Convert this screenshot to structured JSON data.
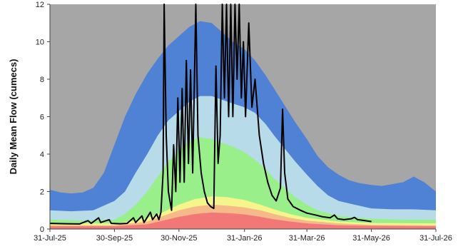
{
  "chart_data": {
    "type": "area",
    "title": "",
    "xlabel": "",
    "ylabel": "Daily Mean Flow (cumecs)",
    "ylim": [
      0,
      12
    ],
    "yticks": [
      0,
      2,
      4,
      6,
      8,
      10,
      12
    ],
    "xlim": [
      "2025-07-31",
      "2026-07-31"
    ],
    "xticks": [
      "2025-07-31",
      "2025-09-30",
      "2025-11-30",
      "2026-01-31",
      "2026-03-31",
      "2026-05-31",
      "2026-07-31"
    ],
    "xtick_labels": [
      "31-Jul-25",
      "30-Sep-25",
      "30-Nov-25",
      "31-Jan-26",
      "31-Mar-26",
      "31-May-26",
      "31-Jul-26"
    ],
    "grid": false,
    "legend": "none",
    "background_color": "#a6a6a6",
    "series": [
      {
        "color": "#4f81d4",
        "points": [
          [
            "2025-07-31",
            2.1
          ],
          [
            "2025-08-10",
            1.95
          ],
          [
            "2025-08-20",
            1.9
          ],
          [
            "2025-08-31",
            1.95
          ],
          [
            "2025-09-10",
            2.2
          ],
          [
            "2025-09-20",
            3.0
          ],
          [
            "2025-09-30",
            4.5
          ],
          [
            "2025-10-10",
            6.0
          ],
          [
            "2025-10-20",
            7.2
          ],
          [
            "2025-10-31",
            8.3
          ],
          [
            "2025-11-10",
            9.1
          ],
          [
            "2025-11-20",
            9.8
          ],
          [
            "2025-11-30",
            10.3
          ],
          [
            "2025-12-10",
            10.8
          ],
          [
            "2025-12-20",
            11.1
          ],
          [
            "2025-12-31",
            11.0
          ],
          [
            "2026-01-10",
            10.5
          ],
          [
            "2026-01-20",
            10.0
          ],
          [
            "2026-01-31",
            9.6
          ],
          [
            "2026-02-10",
            9.0
          ],
          [
            "2026-02-20",
            8.2
          ],
          [
            "2026-02-28",
            7.5
          ],
          [
            "2026-03-10",
            6.6
          ],
          [
            "2026-03-20",
            5.7
          ],
          [
            "2026-03-31",
            4.8
          ],
          [
            "2026-04-10",
            3.9
          ],
          [
            "2026-04-20",
            3.3
          ],
          [
            "2026-04-30",
            2.9
          ],
          [
            "2026-05-10",
            2.6
          ],
          [
            "2026-05-20",
            2.45
          ],
          [
            "2026-05-31",
            2.35
          ],
          [
            "2026-06-10",
            2.3
          ],
          [
            "2026-06-20",
            2.4
          ],
          [
            "2026-06-30",
            2.5
          ],
          [
            "2026-07-10",
            2.8
          ],
          [
            "2026-07-20",
            2.5
          ],
          [
            "2026-07-31",
            2.0
          ]
        ]
      },
      {
        "color": "#b7dbe8",
        "points": [
          [
            "2025-07-31",
            1.0
          ],
          [
            "2025-08-20",
            0.95
          ],
          [
            "2025-09-10",
            1.0
          ],
          [
            "2025-09-30",
            1.5
          ],
          [
            "2025-10-10",
            2.0
          ],
          [
            "2025-10-20",
            3.0
          ],
          [
            "2025-10-31",
            4.0
          ],
          [
            "2025-11-10",
            5.0
          ],
          [
            "2025-11-20",
            5.8
          ],
          [
            "2025-11-30",
            6.3
          ],
          [
            "2025-12-10",
            6.8
          ],
          [
            "2025-12-20",
            7.1
          ],
          [
            "2025-12-31",
            7.1
          ],
          [
            "2026-01-10",
            6.9
          ],
          [
            "2026-01-20",
            6.7
          ],
          [
            "2026-01-31",
            6.5
          ],
          [
            "2026-02-10",
            6.2
          ],
          [
            "2026-02-20",
            5.6
          ],
          [
            "2026-02-28",
            5.0
          ],
          [
            "2026-03-10",
            4.3
          ],
          [
            "2026-03-20",
            3.6
          ],
          [
            "2026-03-31",
            2.9
          ],
          [
            "2026-04-10",
            2.3
          ],
          [
            "2026-04-20",
            1.8
          ],
          [
            "2026-04-30",
            1.5
          ],
          [
            "2026-05-15",
            1.3
          ],
          [
            "2026-05-31",
            1.1
          ],
          [
            "2026-06-20",
            1.05
          ],
          [
            "2026-07-10",
            1.05
          ],
          [
            "2026-07-31",
            1.0
          ]
        ]
      },
      {
        "color": "#99f08a",
        "points": [
          [
            "2025-07-31",
            0.5
          ],
          [
            "2025-08-31",
            0.45
          ],
          [
            "2025-09-30",
            0.5
          ],
          [
            "2025-10-10",
            0.8
          ],
          [
            "2025-10-20",
            1.3
          ],
          [
            "2025-10-31",
            2.0
          ],
          [
            "2025-11-10",
            2.8
          ],
          [
            "2025-11-20",
            3.6
          ],
          [
            "2025-11-30",
            4.2
          ],
          [
            "2025-12-10",
            4.7
          ],
          [
            "2025-12-20",
            4.9
          ],
          [
            "2025-12-31",
            4.8
          ],
          [
            "2026-01-10",
            4.6
          ],
          [
            "2026-01-20",
            4.4
          ],
          [
            "2026-01-31",
            4.1
          ],
          [
            "2026-02-10",
            3.7
          ],
          [
            "2026-02-20",
            3.2
          ],
          [
            "2026-02-28",
            2.7
          ],
          [
            "2026-03-10",
            2.2
          ],
          [
            "2026-03-20",
            1.7
          ],
          [
            "2026-03-31",
            1.3
          ],
          [
            "2026-04-10",
            1.0
          ],
          [
            "2026-04-30",
            0.7
          ],
          [
            "2026-05-31",
            0.55
          ],
          [
            "2026-06-30",
            0.5
          ],
          [
            "2026-07-31",
            0.5
          ]
        ]
      },
      {
        "color": "#f5f58c",
        "points": [
          [
            "2025-07-31",
            0.3
          ],
          [
            "2025-09-30",
            0.3
          ],
          [
            "2025-10-20",
            0.45
          ],
          [
            "2025-10-31",
            0.6
          ],
          [
            "2025-11-15",
            0.9
          ],
          [
            "2025-11-30",
            1.3
          ],
          [
            "2025-12-15",
            1.6
          ],
          [
            "2025-12-31",
            1.75
          ],
          [
            "2026-01-15",
            1.7
          ],
          [
            "2026-01-31",
            1.55
          ],
          [
            "2026-02-15",
            1.3
          ],
          [
            "2026-02-28",
            1.05
          ],
          [
            "2026-03-15",
            0.8
          ],
          [
            "2026-03-31",
            0.6
          ],
          [
            "2026-04-30",
            0.4
          ],
          [
            "2026-05-31",
            0.32
          ],
          [
            "2026-07-31",
            0.3
          ]
        ]
      },
      {
        "color": "#f5b98a",
        "points": [
          [
            "2025-07-31",
            0.2
          ],
          [
            "2025-09-30",
            0.2
          ],
          [
            "2025-10-31",
            0.4
          ],
          [
            "2025-11-15",
            0.7
          ],
          [
            "2025-11-30",
            1.0
          ],
          [
            "2025-12-15",
            1.2
          ],
          [
            "2025-12-31",
            1.3
          ],
          [
            "2026-01-15",
            1.25
          ],
          [
            "2026-01-31",
            1.15
          ],
          [
            "2026-02-15",
            1.0
          ],
          [
            "2026-02-28",
            0.8
          ],
          [
            "2026-03-15",
            0.6
          ],
          [
            "2026-03-31",
            0.45
          ],
          [
            "2026-04-30",
            0.3
          ],
          [
            "2026-05-31",
            0.22
          ],
          [
            "2026-07-31",
            0.2
          ]
        ]
      },
      {
        "color": "#f27878",
        "points": [
          [
            "2025-07-31",
            0.15
          ],
          [
            "2025-09-30",
            0.15
          ],
          [
            "2025-10-31",
            0.25
          ],
          [
            "2025-11-15",
            0.45
          ],
          [
            "2025-11-30",
            0.65
          ],
          [
            "2025-12-15",
            0.8
          ],
          [
            "2025-12-31",
            0.88
          ],
          [
            "2026-01-15",
            0.85
          ],
          [
            "2026-01-31",
            0.78
          ],
          [
            "2026-02-15",
            0.65
          ],
          [
            "2026-02-28",
            0.52
          ],
          [
            "2026-03-15",
            0.4
          ],
          [
            "2026-03-31",
            0.3
          ],
          [
            "2026-04-30",
            0.2
          ],
          [
            "2026-05-31",
            0.17
          ],
          [
            "2026-07-31",
            0.15
          ]
        ]
      },
      {
        "color": "#000000",
        "type": "line",
        "points": [
          [
            "2025-07-31",
            0.3
          ],
          [
            "2025-08-15",
            0.28
          ],
          [
            "2025-08-28",
            0.27
          ],
          [
            "2025-09-05",
            0.45
          ],
          [
            "2025-09-08",
            0.3
          ],
          [
            "2025-09-15",
            0.6
          ],
          [
            "2025-09-17",
            0.35
          ],
          [
            "2025-09-25",
            0.5
          ],
          [
            "2025-09-27",
            0.3
          ],
          [
            "2025-10-05",
            0.28
          ],
          [
            "2025-10-12",
            0.3
          ],
          [
            "2025-10-18",
            0.6
          ],
          [
            "2025-10-20",
            0.35
          ],
          [
            "2025-10-26",
            0.7
          ],
          [
            "2025-10-28",
            0.35
          ],
          [
            "2025-11-03",
            0.9
          ],
          [
            "2025-11-05",
            0.5
          ],
          [
            "2025-11-09",
            0.8
          ],
          [
            "2025-11-11",
            0.5
          ],
          [
            "2025-11-13",
            0.9
          ],
          [
            "2025-11-15",
            3.0
          ],
          [
            "2025-11-16",
            12.0
          ],
          [
            "2025-11-18",
            5.0
          ],
          [
            "2025-11-20",
            2.0
          ],
          [
            "2025-11-23",
            1.0
          ],
          [
            "2025-11-25",
            4.5
          ],
          [
            "2025-11-27",
            2.0
          ],
          [
            "2025-11-29",
            7.0
          ],
          [
            "2025-12-01",
            2.5
          ],
          [
            "2025-12-03",
            7.5
          ],
          [
            "2025-12-05",
            2.5
          ],
          [
            "2025-12-07",
            9.0
          ],
          [
            "2025-12-09",
            3.5
          ],
          [
            "2025-12-11",
            8.5
          ],
          [
            "2025-12-13",
            3.0
          ],
          [
            "2025-12-16",
            12.0
          ],
          [
            "2025-12-18",
            5.0
          ],
          [
            "2025-12-21",
            3.0
          ],
          [
            "2025-12-24",
            2.0
          ],
          [
            "2025-12-27",
            1.4
          ],
          [
            "2025-12-30",
            1.2
          ],
          [
            "2026-01-02",
            1.1
          ],
          [
            "2026-01-04",
            8.7
          ],
          [
            "2026-01-06",
            3.5
          ],
          [
            "2026-01-08",
            5.0
          ],
          [
            "2026-01-10",
            12.0
          ],
          [
            "2026-01-12",
            7.0
          ],
          [
            "2026-01-14",
            12.0
          ],
          [
            "2026-01-16",
            6.0
          ],
          [
            "2026-01-18",
            12.0
          ],
          [
            "2026-01-20",
            6.0
          ],
          [
            "2026-01-22",
            12.0
          ],
          [
            "2026-01-24",
            8.0
          ],
          [
            "2026-01-26",
            12.0
          ],
          [
            "2026-01-28",
            7.0
          ],
          [
            "2026-01-30",
            10.0
          ],
          [
            "2026-02-01",
            6.0
          ],
          [
            "2026-02-04",
            11.0
          ],
          [
            "2026-02-07",
            6.5
          ],
          [
            "2026-02-10",
            8.0
          ],
          [
            "2026-02-14",
            5.0
          ],
          [
            "2026-02-18",
            3.5
          ],
          [
            "2026-02-22",
            2.5
          ],
          [
            "2026-02-26",
            1.8
          ],
          [
            "2026-03-02",
            1.5
          ],
          [
            "2026-03-06",
            2.2
          ],
          [
            "2026-03-08",
            6.4
          ],
          [
            "2026-03-10",
            3.0
          ],
          [
            "2026-03-13",
            1.6
          ],
          [
            "2026-03-18",
            1.2
          ],
          [
            "2026-03-25",
            1.0
          ],
          [
            "2026-03-31",
            0.85
          ],
          [
            "2026-04-08",
            0.75
          ],
          [
            "2026-04-15",
            0.65
          ],
          [
            "2026-04-22",
            0.6
          ],
          [
            "2026-04-26",
            0.75
          ],
          [
            "2026-04-29",
            0.55
          ],
          [
            "2026-05-05",
            0.5
          ],
          [
            "2026-05-12",
            0.55
          ],
          [
            "2026-05-15",
            0.62
          ],
          [
            "2026-05-18",
            0.5
          ],
          [
            "2026-05-25",
            0.45
          ],
          [
            "2026-05-31",
            0.4
          ]
        ]
      }
    ]
  }
}
